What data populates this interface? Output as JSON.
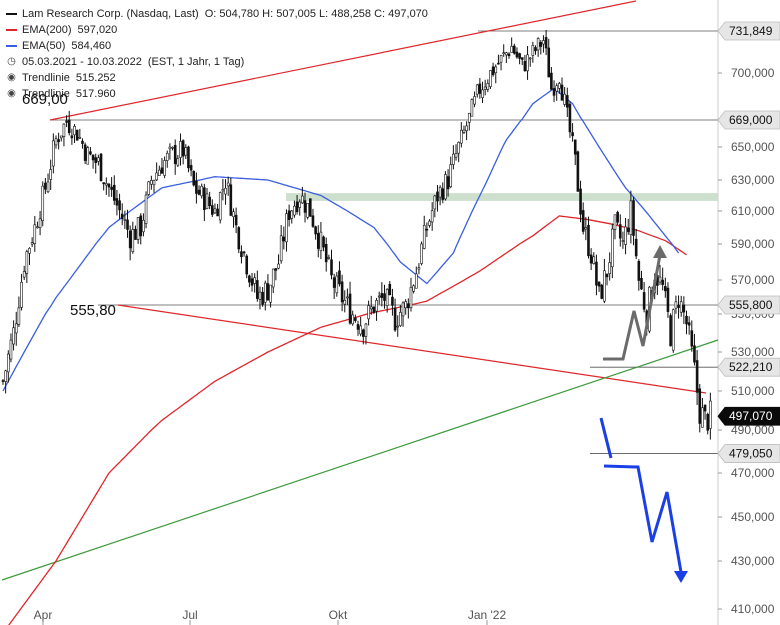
{
  "legend": {
    "title": "Lam Research Corp. (Nasdaq, Last)",
    "ohlc": "O: 504,780  H: 507,005  L: 488,258  C: 497,070",
    "ema200_label": "EMA(200)",
    "ema200_value": "597,020",
    "ema50_label": "EMA(50)",
    "ema50_value": "584,460",
    "range": "05.03.2021 - 10.03.2022",
    "range_detail": "(EST, 1 Jahr, 1 Tag)",
    "trend1_label": "Trendlinie",
    "trend1_value": "515.252",
    "trend2_label": "Trendlinie",
    "trend2_value": "517.960"
  },
  "annotations": {
    "high_left": "669,00",
    "mid_left": "555,80"
  },
  "colors": {
    "ema200": "#e0262a",
    "ema50": "#3a5fe0",
    "trend_up": "#3c9a3c",
    "trend_down": "#e0262a",
    "zone": "#c8dcc8",
    "arrow_down": "#1a3fe6",
    "arrow_up": "#6b6b6b",
    "candle": "#111111"
  },
  "chart_data": {
    "type": "candlestick",
    "y_axis_ticks": [
      "410,000",
      "430,000",
      "450,000",
      "470,000",
      "490,000",
      "510,000",
      "530,000",
      "550,000",
      "570,000",
      "590,000",
      "610,000",
      "630,000",
      "650,000",
      "670,000",
      "700,000"
    ],
    "x_axis_ticks": [
      "Apr",
      "Jul",
      "Okt",
      "Jan '22"
    ],
    "price_tags": [
      {
        "label": "731,849",
        "value": 731.849,
        "style": "light"
      },
      {
        "label": "669,000",
        "value": 669.0,
        "style": "light"
      },
      {
        "label": "555,800",
        "value": 555.8,
        "style": "light"
      },
      {
        "label": "522,210",
        "value": 522.21,
        "style": "light"
      },
      {
        "label": "497,070",
        "value": 497.07,
        "style": "dark"
      },
      {
        "label": "479,050",
        "value": 479.05,
        "style": "light"
      }
    ],
    "close_series_anchors": [
      [
        0,
        515
      ],
      [
        4,
        540
      ],
      [
        8,
        580
      ],
      [
        12,
        600
      ],
      [
        16,
        625
      ],
      [
        20,
        655
      ],
      [
        24,
        668
      ],
      [
        28,
        660
      ],
      [
        32,
        645
      ],
      [
        36,
        640
      ],
      [
        40,
        625
      ],
      [
        44,
        610
      ],
      [
        48,
        595
      ],
      [
        52,
        600
      ],
      [
        56,
        630
      ],
      [
        60,
        640
      ],
      [
        64,
        645
      ],
      [
        68,
        648
      ],
      [
        72,
        625
      ],
      [
        76,
        618
      ],
      [
        80,
        610
      ],
      [
        84,
        630
      ],
      [
        88,
        600
      ],
      [
        92,
        580
      ],
      [
        96,
        560
      ],
      [
        100,
        565
      ],
      [
        104,
        580
      ],
      [
        108,
        610
      ],
      [
        112,
        620
      ],
      [
        116,
        610
      ],
      [
        120,
        590
      ],
      [
        124,
        570
      ],
      [
        128,
        560
      ],
      [
        132,
        550
      ],
      [
        136,
        545
      ],
      [
        140,
        555
      ],
      [
        144,
        560
      ],
      [
        148,
        548
      ],
      [
        152,
        555
      ],
      [
        156,
        575
      ],
      [
        160,
        600
      ],
      [
        164,
        620
      ],
      [
        168,
        630
      ],
      [
        172,
        650
      ],
      [
        176,
        670
      ],
      [
        180,
        690
      ],
      [
        184,
        700
      ],
      [
        188,
        710
      ],
      [
        192,
        720
      ],
      [
        196,
        705
      ],
      [
        200,
        715
      ],
      [
        204,
        725
      ],
      [
        207,
        690
      ],
      [
        210,
        700
      ],
      [
        213,
        670
      ],
      [
        216,
        640
      ],
      [
        219,
        600
      ],
      [
        222,
        585
      ],
      [
        225,
        560
      ],
      [
        228,
        575
      ],
      [
        231,
        600
      ],
      [
        234,
        590
      ],
      [
        237,
        610
      ],
      [
        240,
        570
      ],
      [
        243,
        550
      ],
      [
        246,
        575
      ],
      [
        249,
        565
      ],
      [
        252,
        540
      ],
      [
        255,
        560
      ],
      [
        258,
        545
      ],
      [
        261,
        520
      ],
      [
        263,
        500
      ],
      [
        265,
        495
      ],
      [
        267,
        497.07
      ]
    ],
    "ema200_anchors": [
      [
        0,
        400
      ],
      [
        20,
        430
      ],
      [
        40,
        470
      ],
      [
        60,
        495
      ],
      [
        80,
        515
      ],
      [
        100,
        530
      ],
      [
        120,
        543
      ],
      [
        140,
        551
      ],
      [
        160,
        558
      ],
      [
        180,
        575
      ],
      [
        200,
        595
      ],
      [
        210,
        607
      ],
      [
        220,
        605
      ],
      [
        230,
        602
      ],
      [
        240,
        598
      ],
      [
        250,
        592
      ],
      [
        258,
        584
      ]
    ],
    "ema50_anchors": [
      [
        0,
        510
      ],
      [
        20,
        560
      ],
      [
        40,
        600
      ],
      [
        60,
        625
      ],
      [
        80,
        632
      ],
      [
        100,
        630
      ],
      [
        120,
        620
      ],
      [
        140,
        600
      ],
      [
        150,
        580
      ],
      [
        160,
        568
      ],
      [
        170,
        585
      ],
      [
        180,
        620
      ],
      [
        190,
        655
      ],
      [
        200,
        680
      ],
      [
        208,
        690
      ],
      [
        215,
        680
      ],
      [
        225,
        650
      ],
      [
        235,
        625
      ],
      [
        245,
        605
      ],
      [
        255,
        585
      ]
    ],
    "trend_down_points": [
      [
        0,
        669.0
      ],
      [
        23,
        669.0
      ],
      [
        210,
        731.849
      ]
    ],
    "trendline_red_points": [
      [
        48,
        555.8
      ],
      [
        267,
        508
      ]
    ],
    "trendline_green_points": [
      [
        0,
        421
      ],
      [
        267,
        537
      ]
    ],
    "resistance_zone": [
      616.5,
      621.5
    ]
  }
}
